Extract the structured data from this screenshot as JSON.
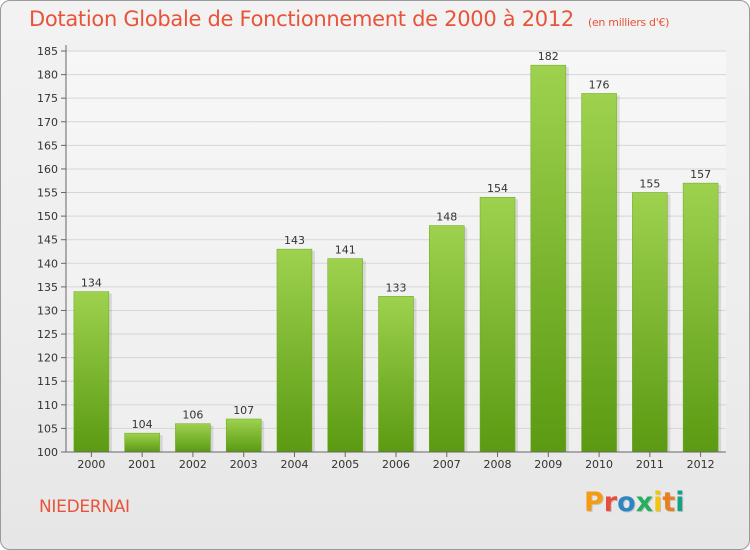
{
  "header": {
    "title": "Dotation Globale de Fonctionnement de 2000 à 2012",
    "unit": "(en milliers d'€)"
  },
  "footer": {
    "commune": "NIEDERNAI",
    "logo": "Proxiti",
    "logo_colors": [
      "#f39c12",
      "#e74c3c",
      "#2e86c1",
      "#27ae60",
      "#f1c40f",
      "#e67e22",
      "#16a085"
    ]
  },
  "colors": {
    "title": "#e8543a",
    "bar_top": "#9ed24e",
    "bar_bottom": "#5b9a12",
    "grid": "#d6d6d6",
    "axis_text": "#333333"
  },
  "chart_data": {
    "type": "bar",
    "title": "Dotation Globale de Fonctionnement de 2000 à 2012",
    "subtitle": "(en milliers d'€)",
    "categories": [
      "2000",
      "2001",
      "2002",
      "2003",
      "2004",
      "2005",
      "2006",
      "2007",
      "2008",
      "2009",
      "2010",
      "2011",
      "2012"
    ],
    "values": [
      134,
      104,
      106,
      107,
      143,
      141,
      133,
      148,
      154,
      182,
      176,
      155,
      157
    ],
    "data_labels": [
      "134",
      "104",
      "106",
      "107",
      "143",
      "141",
      "133",
      "148",
      "154",
      "182",
      "176",
      "155",
      "157"
    ],
    "ylim": [
      100,
      185
    ],
    "yticks": [
      100,
      105,
      110,
      115,
      120,
      125,
      130,
      135,
      140,
      145,
      150,
      155,
      160,
      165,
      170,
      175,
      180,
      185
    ],
    "xlabel": "",
    "ylabel": "",
    "grid": true,
    "legend": "none"
  }
}
